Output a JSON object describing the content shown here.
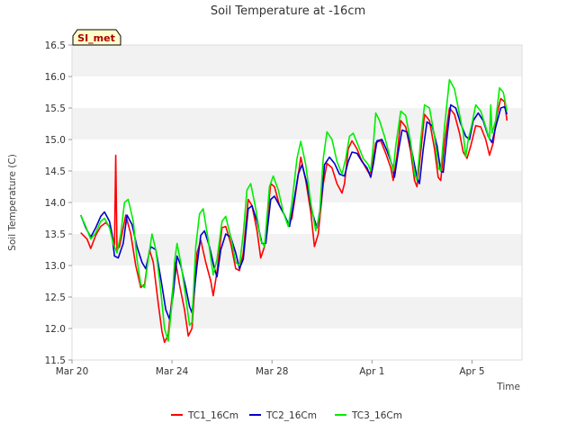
{
  "chart_data": {
    "type": "line",
    "title": "Soil Temperature at -16cm",
    "xlabel": "Time",
    "ylabel": "Soil Temperature (C)",
    "station_label": "SI_met",
    "ylim": [
      11.5,
      16.5
    ],
    "xlim": [
      0,
      18
    ],
    "yticks": [
      "11.5",
      "12.0",
      "12.5",
      "13.0",
      "13.5",
      "14.0",
      "14.5",
      "15.0",
      "15.5",
      "16.0",
      "16.5"
    ],
    "xticks": [
      {
        "label": "Mar 20",
        "day": 0
      },
      {
        "label": "Mar 24",
        "day": 4
      },
      {
        "label": "Mar 28",
        "day": 8
      },
      {
        "label": "Apr 1",
        "day": 12
      },
      {
        "label": "Apr 5",
        "day": 16
      }
    ],
    "grid_bands": true,
    "legend_position": "bottom-center",
    "series": [
      {
        "name": "TC1_16Cm",
        "color": "#ff0000",
        "points": [
          [
            0.35,
            13.52
          ],
          [
            0.6,
            13.42
          ],
          [
            0.75,
            13.27
          ],
          [
            0.95,
            13.48
          ],
          [
            1.15,
            13.62
          ],
          [
            1.35,
            13.68
          ],
          [
            1.55,
            13.6
          ],
          [
            1.7,
            13.3
          ],
          [
            1.75,
            14.75
          ],
          [
            1.8,
            13.25
          ],
          [
            1.9,
            13.3
          ],
          [
            2.15,
            13.8
          ],
          [
            2.35,
            13.5
          ],
          [
            2.55,
            13.0
          ],
          [
            2.75,
            12.65
          ],
          [
            2.9,
            12.7
          ],
          [
            3.1,
            13.25
          ],
          [
            3.25,
            13.05
          ],
          [
            3.45,
            12.4
          ],
          [
            3.6,
            11.95
          ],
          [
            3.7,
            11.78
          ],
          [
            3.85,
            11.9
          ],
          [
            4.05,
            12.7
          ],
          [
            4.15,
            13.05
          ],
          [
            4.3,
            12.7
          ],
          [
            4.5,
            12.3
          ],
          [
            4.65,
            11.88
          ],
          [
            4.8,
            12.0
          ],
          [
            5.0,
            13.2
          ],
          [
            5.15,
            13.4
          ],
          [
            5.35,
            13.05
          ],
          [
            5.55,
            12.75
          ],
          [
            5.65,
            12.52
          ],
          [
            5.8,
            12.9
          ],
          [
            6.0,
            13.6
          ],
          [
            6.15,
            13.62
          ],
          [
            6.35,
            13.35
          ],
          [
            6.55,
            12.95
          ],
          [
            6.7,
            12.92
          ],
          [
            6.85,
            13.2
          ],
          [
            7.05,
            14.05
          ],
          [
            7.2,
            13.95
          ],
          [
            7.4,
            13.55
          ],
          [
            7.55,
            13.12
          ],
          [
            7.7,
            13.3
          ],
          [
            7.95,
            14.3
          ],
          [
            8.1,
            14.25
          ],
          [
            8.3,
            13.95
          ],
          [
            8.5,
            13.8
          ],
          [
            8.65,
            13.65
          ],
          [
            8.8,
            13.75
          ],
          [
            9.0,
            14.3
          ],
          [
            9.15,
            14.72
          ],
          [
            9.35,
            14.35
          ],
          [
            9.55,
            13.85
          ],
          [
            9.7,
            13.3
          ],
          [
            9.85,
            13.5
          ],
          [
            10.05,
            14.3
          ],
          [
            10.2,
            14.62
          ],
          [
            10.4,
            14.55
          ],
          [
            10.6,
            14.3
          ],
          [
            10.8,
            14.15
          ],
          [
            10.9,
            14.3
          ],
          [
            11.05,
            14.85
          ],
          [
            11.2,
            14.98
          ],
          [
            11.4,
            14.85
          ],
          [
            11.55,
            14.7
          ],
          [
            11.75,
            14.55
          ],
          [
            11.9,
            14.45
          ],
          [
            12.0,
            14.55
          ],
          [
            12.15,
            14.95
          ],
          [
            12.35,
            14.98
          ],
          [
            12.55,
            14.78
          ],
          [
            12.75,
            14.55
          ],
          [
            12.85,
            14.35
          ],
          [
            13.0,
            14.75
          ],
          [
            13.15,
            15.3
          ],
          [
            13.35,
            15.2
          ],
          [
            13.55,
            14.8
          ],
          [
            13.7,
            14.35
          ],
          [
            13.8,
            14.25
          ],
          [
            13.95,
            14.8
          ],
          [
            14.1,
            15.4
          ],
          [
            14.3,
            15.3
          ],
          [
            14.5,
            14.85
          ],
          [
            14.65,
            14.4
          ],
          [
            14.75,
            14.35
          ],
          [
            14.9,
            14.95
          ],
          [
            15.1,
            15.5
          ],
          [
            15.3,
            15.4
          ],
          [
            15.5,
            15.1
          ],
          [
            15.65,
            14.8
          ],
          [
            15.8,
            14.7
          ],
          [
            15.95,
            14.9
          ],
          [
            16.15,
            15.22
          ],
          [
            16.35,
            15.2
          ],
          [
            16.55,
            15.0
          ],
          [
            16.7,
            14.75
          ],
          [
            16.85,
            14.95
          ],
          [
            17.0,
            15.4
          ],
          [
            17.15,
            15.65
          ],
          [
            17.3,
            15.6
          ],
          [
            17.4,
            15.3
          ]
        ]
      },
      {
        "name": "TC2_16Cm",
        "color": "#0000cc",
        "points": [
          [
            0.35,
            13.8
          ],
          [
            0.55,
            13.6
          ],
          [
            0.75,
            13.45
          ],
          [
            0.95,
            13.6
          ],
          [
            1.15,
            13.78
          ],
          [
            1.3,
            13.85
          ],
          [
            1.5,
            13.7
          ],
          [
            1.6,
            13.5
          ],
          [
            1.7,
            13.15
          ],
          [
            1.85,
            13.12
          ],
          [
            2.05,
            13.35
          ],
          [
            2.2,
            13.8
          ],
          [
            2.4,
            13.65
          ],
          [
            2.6,
            13.3
          ],
          [
            2.8,
            13.05
          ],
          [
            2.95,
            12.95
          ],
          [
            3.15,
            13.3
          ],
          [
            3.35,
            13.25
          ],
          [
            3.55,
            12.8
          ],
          [
            3.75,
            12.3
          ],
          [
            3.9,
            12.15
          ],
          [
            4.05,
            12.55
          ],
          [
            4.2,
            13.15
          ],
          [
            4.35,
            13.0
          ],
          [
            4.55,
            12.65
          ],
          [
            4.7,
            12.35
          ],
          [
            4.8,
            12.25
          ],
          [
            5.0,
            13.0
          ],
          [
            5.15,
            13.48
          ],
          [
            5.3,
            13.55
          ],
          [
            5.5,
            13.3
          ],
          [
            5.7,
            12.95
          ],
          [
            5.8,
            12.82
          ],
          [
            5.95,
            13.25
          ],
          [
            6.15,
            13.5
          ],
          [
            6.35,
            13.45
          ],
          [
            6.55,
            13.2
          ],
          [
            6.7,
            12.95
          ],
          [
            6.85,
            13.1
          ],
          [
            7.05,
            13.9
          ],
          [
            7.2,
            13.95
          ],
          [
            7.4,
            13.7
          ],
          [
            7.6,
            13.35
          ],
          [
            7.75,
            13.35
          ],
          [
            7.95,
            14.05
          ],
          [
            8.1,
            14.1
          ],
          [
            8.3,
            13.95
          ],
          [
            8.5,
            13.8
          ],
          [
            8.7,
            13.62
          ],
          [
            8.85,
            13.95
          ],
          [
            9.05,
            14.45
          ],
          [
            9.2,
            14.6
          ],
          [
            9.4,
            14.3
          ],
          [
            9.6,
            13.85
          ],
          [
            9.8,
            13.6
          ],
          [
            9.95,
            13.95
          ],
          [
            10.1,
            14.6
          ],
          [
            10.3,
            14.72
          ],
          [
            10.5,
            14.62
          ],
          [
            10.7,
            14.45
          ],
          [
            10.9,
            14.42
          ],
          [
            11.05,
            14.65
          ],
          [
            11.2,
            14.8
          ],
          [
            11.4,
            14.78
          ],
          [
            11.6,
            14.65
          ],
          [
            11.8,
            14.55
          ],
          [
            11.95,
            14.4
          ],
          [
            12.05,
            14.6
          ],
          [
            12.2,
            14.98
          ],
          [
            12.4,
            15.0
          ],
          [
            12.6,
            14.82
          ],
          [
            12.8,
            14.6
          ],
          [
            12.9,
            14.4
          ],
          [
            13.05,
            14.8
          ],
          [
            13.2,
            15.15
          ],
          [
            13.4,
            15.12
          ],
          [
            13.6,
            14.8
          ],
          [
            13.8,
            14.4
          ],
          [
            13.9,
            14.3
          ],
          [
            14.05,
            14.85
          ],
          [
            14.2,
            15.28
          ],
          [
            14.4,
            15.22
          ],
          [
            14.6,
            14.9
          ],
          [
            14.75,
            14.5
          ],
          [
            14.85,
            14.48
          ],
          [
            15.0,
            15.05
          ],
          [
            15.15,
            15.55
          ],
          [
            15.35,
            15.5
          ],
          [
            15.55,
            15.25
          ],
          [
            15.75,
            15.05
          ],
          [
            15.9,
            15.0
          ],
          [
            16.05,
            15.3
          ],
          [
            16.25,
            15.42
          ],
          [
            16.45,
            15.3
          ],
          [
            16.65,
            15.05
          ],
          [
            16.8,
            14.95
          ],
          [
            16.95,
            15.2
          ],
          [
            17.15,
            15.5
          ],
          [
            17.3,
            15.52
          ],
          [
            17.4,
            15.4
          ]
        ]
      },
      {
        "name": "TC3_16Cm",
        "color": "#00ee00",
        "points": [
          [
            0.35,
            13.8
          ],
          [
            0.55,
            13.62
          ],
          [
            0.75,
            13.42
          ],
          [
            0.95,
            13.52
          ],
          [
            1.15,
            13.7
          ],
          [
            1.3,
            13.75
          ],
          [
            1.5,
            13.6
          ],
          [
            1.65,
            13.35
          ],
          [
            1.8,
            13.2
          ],
          [
            1.95,
            13.5
          ],
          [
            2.1,
            14.0
          ],
          [
            2.25,
            14.05
          ],
          [
            2.45,
            13.7
          ],
          [
            2.6,
            13.1
          ],
          [
            2.75,
            12.7
          ],
          [
            2.9,
            12.65
          ],
          [
            3.05,
            13.1
          ],
          [
            3.2,
            13.5
          ],
          [
            3.35,
            13.25
          ],
          [
            3.55,
            12.6
          ],
          [
            3.7,
            12.0
          ],
          [
            3.85,
            11.8
          ],
          [
            4.0,
            12.4
          ],
          [
            4.1,
            13.05
          ],
          [
            4.2,
            13.35
          ],
          [
            4.35,
            13.05
          ],
          [
            4.55,
            12.5
          ],
          [
            4.7,
            12.05
          ],
          [
            4.8,
            12.1
          ],
          [
            4.95,
            13.3
          ],
          [
            5.1,
            13.82
          ],
          [
            5.25,
            13.9
          ],
          [
            5.45,
            13.4
          ],
          [
            5.65,
            12.85
          ],
          [
            5.8,
            13.1
          ],
          [
            6.0,
            13.7
          ],
          [
            6.15,
            13.78
          ],
          [
            6.35,
            13.45
          ],
          [
            6.55,
            13.05
          ],
          [
            6.7,
            13.0
          ],
          [
            6.85,
            13.5
          ],
          [
            7.0,
            14.2
          ],
          [
            7.15,
            14.3
          ],
          [
            7.35,
            13.9
          ],
          [
            7.55,
            13.4
          ],
          [
            7.7,
            13.3
          ],
          [
            7.9,
            14.25
          ],
          [
            8.05,
            14.42
          ],
          [
            8.25,
            14.2
          ],
          [
            8.45,
            13.85
          ],
          [
            8.65,
            13.62
          ],
          [
            8.8,
            14.0
          ],
          [
            9.0,
            14.7
          ],
          [
            9.15,
            14.97
          ],
          [
            9.35,
            14.6
          ],
          [
            9.55,
            14.0
          ],
          [
            9.75,
            13.55
          ],
          [
            9.9,
            13.8
          ],
          [
            10.05,
            14.7
          ],
          [
            10.2,
            15.12
          ],
          [
            10.4,
            15.0
          ],
          [
            10.6,
            14.65
          ],
          [
            10.8,
            14.45
          ],
          [
            10.95,
            14.7
          ],
          [
            11.1,
            15.05
          ],
          [
            11.25,
            15.1
          ],
          [
            11.45,
            14.9
          ],
          [
            11.65,
            14.7
          ],
          [
            11.85,
            14.6
          ],
          [
            11.95,
            14.5
          ],
          [
            12.05,
            14.9
          ],
          [
            12.15,
            15.42
          ],
          [
            12.3,
            15.3
          ],
          [
            12.5,
            15.05
          ],
          [
            12.7,
            14.75
          ],
          [
            12.85,
            14.5
          ],
          [
            12.95,
            14.9
          ],
          [
            13.15,
            15.45
          ],
          [
            13.35,
            15.38
          ],
          [
            13.55,
            14.95
          ],
          [
            13.7,
            14.45
          ],
          [
            13.8,
            14.35
          ],
          [
            13.95,
            15.0
          ],
          [
            14.1,
            15.55
          ],
          [
            14.3,
            15.5
          ],
          [
            14.5,
            15.05
          ],
          [
            14.65,
            14.55
          ],
          [
            14.75,
            14.5
          ],
          [
            14.9,
            15.2
          ],
          [
            15.1,
            15.95
          ],
          [
            15.3,
            15.8
          ],
          [
            15.5,
            15.4
          ],
          [
            15.65,
            15.1
          ],
          [
            15.75,
            14.72
          ],
          [
            15.85,
            15.0
          ],
          [
            16.0,
            15.25
          ],
          [
            16.15,
            15.55
          ],
          [
            16.35,
            15.45
          ],
          [
            16.55,
            15.2
          ],
          [
            16.7,
            15.0
          ],
          [
            16.75,
            15.55
          ],
          [
            16.8,
            15.1
          ],
          [
            16.95,
            15.3
          ],
          [
            17.1,
            15.82
          ],
          [
            17.25,
            15.75
          ],
          [
            17.4,
            15.45
          ]
        ]
      }
    ]
  }
}
